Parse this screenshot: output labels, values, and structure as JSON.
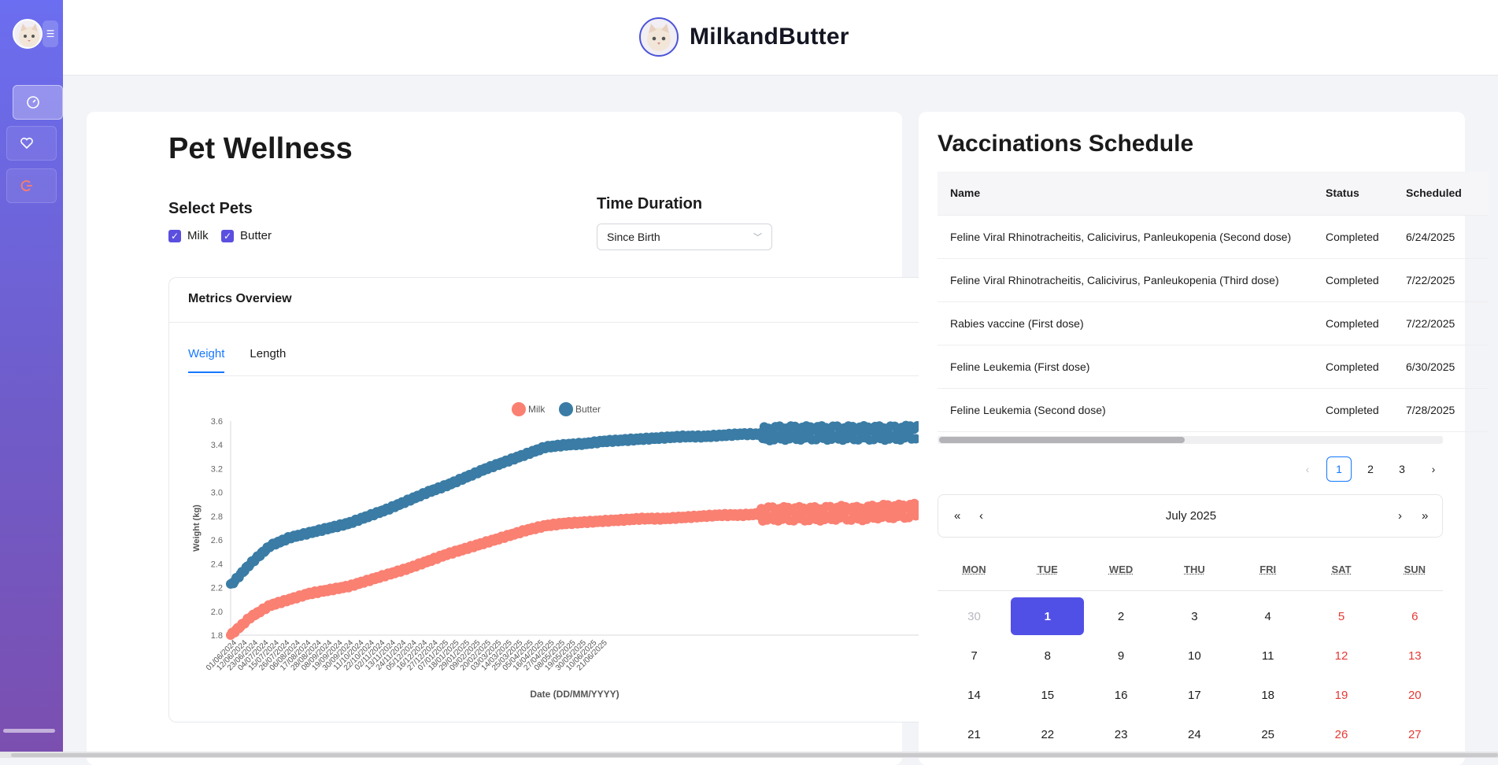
{
  "header": {
    "brand": "MilkandButter",
    "logo_icon": "cat-face-icon"
  },
  "sidebar": {
    "toggle_icon": "menu-toggle-icon",
    "items": [
      {
        "name": "dashboard",
        "icon": "dashboard-gauge-icon",
        "active": true
      },
      {
        "name": "favorites",
        "icon": "heart-icon",
        "active": false
      },
      {
        "name": "logout",
        "icon": "logout-icon",
        "active": false
      }
    ]
  },
  "wellness": {
    "title": "Pet Wellness",
    "select_pets_label": "Select Pets",
    "pets": [
      {
        "label": "Milk",
        "checked": true
      },
      {
        "label": "Butter",
        "checked": true
      }
    ],
    "time_duration_label": "Time Duration",
    "time_duration_value": "Since Birth",
    "metrics_title": "Metrics Overview",
    "tabs": [
      {
        "label": "Weight",
        "active": true
      },
      {
        "label": "Length",
        "active": false
      }
    ]
  },
  "chart_data": {
    "type": "scatter",
    "xlabel": "Date (DD/MM/YYYY)",
    "ylabel": "Weight (kg)",
    "ylim": [
      1.8,
      3.6
    ],
    "yticks": [
      "1.8",
      "2.0",
      "2.2",
      "2.4",
      "2.6",
      "2.8",
      "3.0",
      "3.2",
      "3.4",
      "3.6"
    ],
    "xticks": [
      "01/06/2024",
      "12/06/2024",
      "23/06/2024",
      "04/07/2024",
      "15/07/2024",
      "26/07/2024",
      "06/08/2024",
      "17/08/2024",
      "28/08/2024",
      "08/09/2024",
      "19/09/2024",
      "30/09/2024",
      "11/10/2024",
      "22/10/2024",
      "02/11/2024",
      "13/11/2024",
      "24/11/2024",
      "05/12/2024",
      "16/12/2024",
      "27/12/2024",
      "07/01/2025",
      "18/01/2025",
      "29/01/2025",
      "09/02/2025",
      "20/02/2025",
      "03/03/2025",
      "14/03/2025",
      "25/03/2025",
      "05/04/2025",
      "16/04/2025",
      "27/04/2025",
      "08/05/2025",
      "19/05/2025",
      "30/05/2025",
      "10/06/2025",
      "21/06/2025"
    ],
    "legend_position": "top-center",
    "series": [
      {
        "name": "Milk",
        "color": "#fa8072",
        "values": [
          1.8,
          1.95,
          2.05,
          2.1,
          2.15,
          2.18,
          2.21,
          2.26,
          2.31,
          2.36,
          2.42,
          2.48,
          2.53,
          2.58,
          2.63,
          2.68,
          2.72,
          2.74,
          2.75,
          2.76,
          2.77,
          2.78,
          2.78,
          2.79,
          2.8,
          2.81,
          2.81,
          2.82,
          2.82,
          2.82,
          2.82,
          2.83,
          2.82,
          2.84,
          2.84,
          2.85
        ]
      },
      {
        "name": "Butter",
        "color": "#3a7ca5",
        "values": [
          2.22,
          2.4,
          2.55,
          2.62,
          2.66,
          2.7,
          2.74,
          2.8,
          2.86,
          2.93,
          3.0,
          3.06,
          3.13,
          3.2,
          3.26,
          3.32,
          3.38,
          3.4,
          3.41,
          3.43,
          3.44,
          3.45,
          3.46,
          3.47,
          3.47,
          3.48,
          3.49,
          3.49,
          3.5,
          3.5,
          3.5,
          3.5,
          3.5,
          3.5,
          3.5,
          3.51
        ]
      }
    ]
  },
  "vaccinations": {
    "title": "Vaccinations Schedule",
    "columns": [
      "Name",
      "Status",
      "Scheduled"
    ],
    "rows": [
      {
        "name": "Feline Viral Rhinotracheitis, Calicivirus, Panleukopenia (Second dose)",
        "status": "Completed",
        "date": "6/24/2025"
      },
      {
        "name": "Feline Viral Rhinotracheitis, Calicivirus, Panleukopenia (Third dose)",
        "status": "Completed",
        "date": "7/22/2025"
      },
      {
        "name": "Rabies vaccine (First dose)",
        "status": "Completed",
        "date": "7/22/2025"
      },
      {
        "name": "Feline Leukemia (First dose)",
        "status": "Completed",
        "date": "6/30/2025"
      },
      {
        "name": "Feline Leukemia (Second dose)",
        "status": "Completed",
        "date": "7/28/2025"
      }
    ],
    "pagination": {
      "prev": "‹",
      "next": "›",
      "pages": [
        "1",
        "2",
        "3"
      ],
      "current": "1"
    }
  },
  "calendar": {
    "month_label": "July 2025",
    "nav": {
      "prev_year": "«",
      "prev_month": "‹",
      "next_month": "›",
      "next_year": "»"
    },
    "weekdays": [
      "MON",
      "TUE",
      "WED",
      "THU",
      "FRI",
      "SAT",
      "SUN"
    ],
    "weeks": [
      [
        "30",
        "1",
        "2",
        "3",
        "4",
        "5",
        "6"
      ],
      [
        "7",
        "8",
        "9",
        "10",
        "11",
        "12",
        "13"
      ],
      [
        "14",
        "15",
        "16",
        "17",
        "18",
        "19",
        "20"
      ],
      [
        "21",
        "22",
        "23",
        "24",
        "25",
        "26",
        "27"
      ]
    ],
    "selected_day": "1",
    "muted_days": [
      "30"
    ]
  }
}
